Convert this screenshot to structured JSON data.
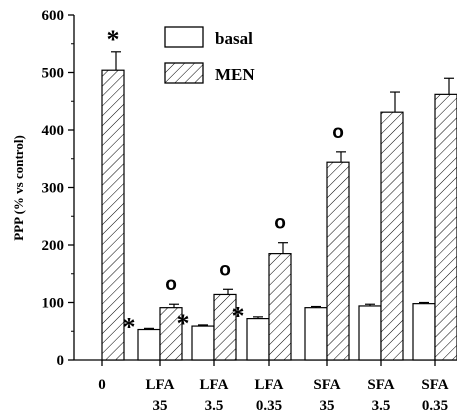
{
  "chart_data": {
    "type": "bar",
    "title": "",
    "xlabel": "",
    "ylabel": "PPP (% vs control)",
    "ylim": [
      0,
      600
    ],
    "yticks": [
      "0",
      "100",
      "200",
      "300",
      "400",
      "500",
      "600"
    ],
    "grid": false,
    "legend_position": "top",
    "categories": [
      {
        "line1": "0",
        "line2": ""
      },
      {
        "line1": "LFA",
        "line2": "35"
      },
      {
        "line1": "LFA",
        "line2": "3.5"
      },
      {
        "line1": "LFA",
        "line2": "0.35"
      },
      {
        "line1": "SFA",
        "line2": "35"
      },
      {
        "line1": "SFA",
        "line2": "3.5"
      },
      {
        "line1": "SFA",
        "line2": "0.35"
      }
    ],
    "series": [
      {
        "name": "basal",
        "pattern": "open",
        "values": [
          null,
          53,
          59,
          72,
          91,
          94,
          98
        ],
        "errors": [
          null,
          2,
          2,
          3,
          2,
          3,
          2
        ],
        "markers": [
          null,
          "*",
          "*",
          "*",
          null,
          null,
          null
        ]
      },
      {
        "name": "MEN",
        "pattern": "hatched",
        "values": [
          504,
          91,
          114,
          185,
          344,
          431,
          462
        ],
        "errors": [
          32,
          6,
          9,
          19,
          18,
          35,
          28
        ],
        "markers": [
          "*",
          "o",
          "o",
          "o",
          "o",
          null,
          null
        ]
      }
    ],
    "colors": {
      "stroke": "#000000",
      "fill": "#ffffff"
    }
  }
}
